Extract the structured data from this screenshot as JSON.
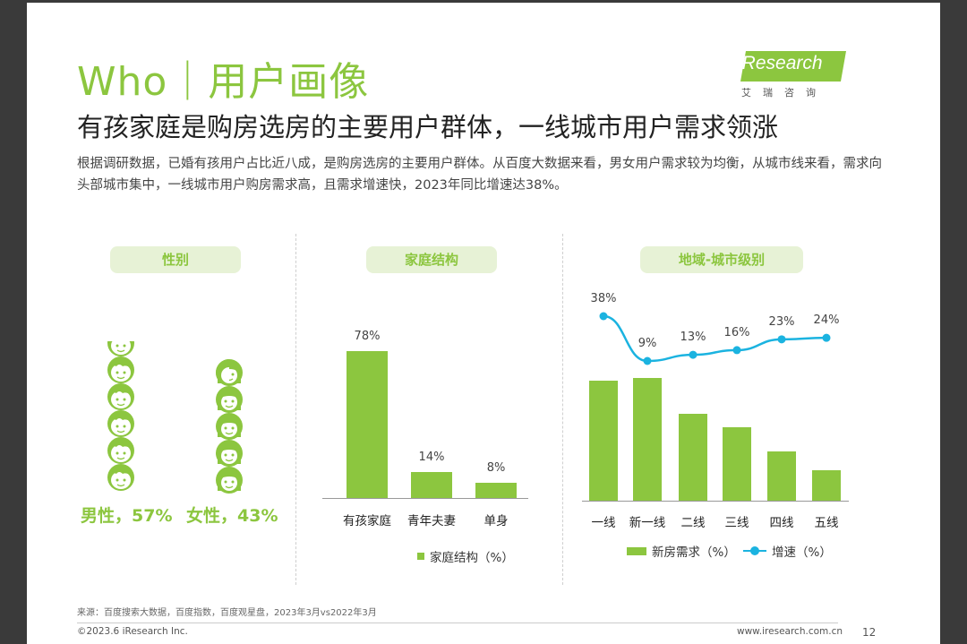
{
  "header": {
    "title": "Who｜用户画像",
    "headline": "有孩家庭是购房选房的主要用户群体，一线城市用户需求领涨",
    "description": "根据调研数据，已婚有孩用户占比近八成，是购房选房的主要用户群体。从百度大数据来看，男女用户需求较为均衡，从城市线来看，需求向头部城市集中，一线城市用户购房需求高，且需求增速快，2023年同比增速达38%。"
  },
  "logo": {
    "brand": "iResearch",
    "sub": "艾瑞咨询"
  },
  "colors": {
    "accent": "#8cc63f",
    "line": "#1bb3e0",
    "pill_bg": "#e7f2d6"
  },
  "panels": {
    "gender": {
      "title": "性别",
      "male_label": "男性，57%",
      "female_label": "女性，43%",
      "icons": [
        "boy-face-icon",
        "girl-face-icon"
      ]
    },
    "family": {
      "title": "家庭结构"
    },
    "region": {
      "title": "地域-城市级别"
    }
  },
  "chart_data": [
    {
      "type": "bar",
      "categories": [
        "有孩家庭",
        "青年夫妻",
        "单身"
      ],
      "values": [
        78,
        14,
        8
      ],
      "labels": [
        "78%",
        "14%",
        "8%"
      ],
      "legend": "家庭结构（%）"
    },
    {
      "type": "bar+line",
      "categories": [
        "一线",
        "新一线",
        "二线",
        "三线",
        "四线",
        "五线"
      ],
      "series": [
        {
          "name": "新房需求（%）",
          "type": "bar",
          "values": [
            25.5,
            26,
            18.5,
            15.5,
            10.5,
            6.5
          ]
        },
        {
          "name": "增速（%）",
          "type": "line",
          "values": [
            38,
            9,
            13,
            16,
            23,
            24
          ],
          "labels": [
            "38%",
            "9%",
            "13%",
            "16%",
            "23%",
            "24%"
          ]
        }
      ]
    }
  ],
  "footer": {
    "source": "来源：百度搜索大数据，百度指数，百度观星盘，2023年3月vs2022年3月",
    "copyright": "©2023.6 iResearch Inc.",
    "site": "www.iresearch.com.cn",
    "page": "12"
  }
}
